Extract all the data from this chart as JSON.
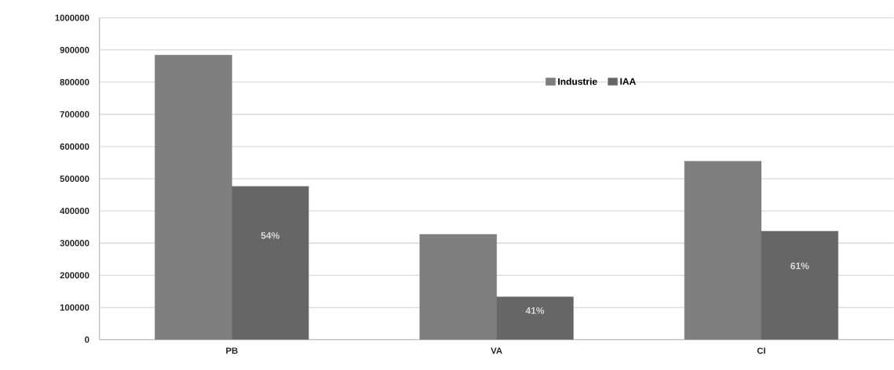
{
  "chart_data": {
    "type": "bar",
    "categories": [
      "PB",
      "VA",
      "CI"
    ],
    "series": [
      {
        "name": "Industrie",
        "color": "#7f7f7f",
        "values": [
          884000,
          327000,
          554000
        ]
      },
      {
        "name": "IAA",
        "color": "#666666",
        "values": [
          476000,
          133000,
          337000
        ]
      }
    ],
    "annotations": [
      "54%",
      "41%",
      "61%"
    ],
    "ylim": [
      0,
      1000000
    ],
    "yticks": [
      0,
      100000,
      200000,
      300000,
      400000,
      500000,
      600000,
      700000,
      800000,
      900000,
      1000000
    ],
    "grid": "y",
    "legend": "top"
  }
}
